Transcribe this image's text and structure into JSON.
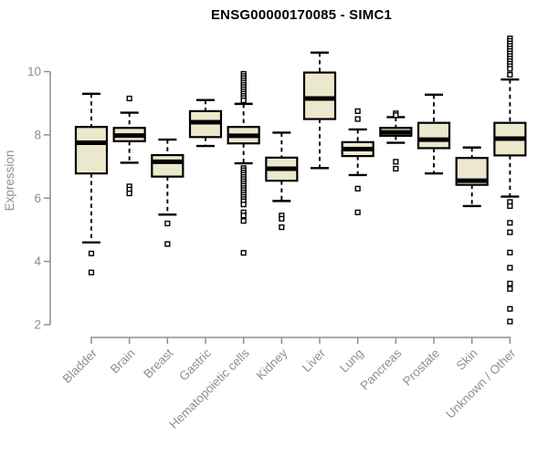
{
  "chart_data": {
    "type": "boxplot",
    "title": "ENSG00000170085 - SIMC1",
    "ylabel": "Expression",
    "xlabel": "",
    "yticks": [
      2,
      4,
      6,
      8,
      10
    ],
    "ylim": [
      1.9,
      11.1
    ],
    "grid": false,
    "legend": "none",
    "colors": {
      "box_fill": "#ece8cd",
      "box_stroke": "#000000",
      "axis": "#8f8f8f",
      "title": "#000000",
      "background": "#ffffff"
    },
    "categories": [
      "Bladder",
      "Brain",
      "Breast",
      "Gastric",
      "Hematopoietic cells",
      "Kidney",
      "Liver",
      "Lung",
      "Pancreas",
      "Prostate",
      "Skin",
      "Unknown / Other"
    ],
    "series": [
      {
        "name": "Bladder",
        "whisker_low": 4.6,
        "q1": 6.78,
        "median": 7.75,
        "q3": 8.25,
        "whisker_high": 9.3,
        "outliers": [
          4.25,
          3.65
        ]
      },
      {
        "name": "Brain",
        "whisker_low": 7.12,
        "q1": 7.8,
        "median": 7.98,
        "q3": 8.22,
        "whisker_high": 8.7,
        "outliers": [
          9.15,
          6.37,
          6.27,
          6.15
        ]
      },
      {
        "name": "Breast",
        "whisker_low": 5.48,
        "q1": 6.68,
        "median": 7.15,
        "q3": 7.36,
        "whisker_high": 7.85,
        "outliers": [
          5.2,
          4.55
        ]
      },
      {
        "name": "Gastric",
        "whisker_low": 7.65,
        "q1": 7.93,
        "median": 8.4,
        "q3": 8.75,
        "whisker_high": 9.1,
        "outliers": []
      },
      {
        "name": "Hematopoietic cells",
        "whisker_low": 7.1,
        "q1": 7.73,
        "median": 7.97,
        "q3": 8.25,
        "whisker_high": 8.98,
        "outliers": [
          9.93,
          9.86,
          9.79,
          9.72,
          9.65,
          9.58,
          9.51,
          9.44,
          9.37,
          9.3,
          9.23,
          9.16,
          9.09,
          6.95,
          6.88,
          6.81,
          6.74,
          6.67,
          6.6,
          6.53,
          6.46,
          6.39,
          6.32,
          6.25,
          6.18,
          6.11,
          6.04,
          5.97,
          5.9,
          5.8,
          5.55,
          5.45,
          5.28,
          4.27
        ]
      },
      {
        "name": "Kidney",
        "whisker_low": 5.91,
        "q1": 6.55,
        "median": 6.93,
        "q3": 7.28,
        "whisker_high": 8.07,
        "outliers": [
          5.45,
          5.35,
          5.08
        ]
      },
      {
        "name": "Liver",
        "whisker_low": 6.95,
        "q1": 8.5,
        "median": 9.15,
        "q3": 9.97,
        "whisker_high": 10.6,
        "outliers": []
      },
      {
        "name": "Lung",
        "whisker_low": 6.73,
        "q1": 7.33,
        "median": 7.55,
        "q3": 7.77,
        "whisker_high": 8.17,
        "outliers": [
          8.75,
          8.5,
          6.3,
          5.55
        ]
      },
      {
        "name": "Pancreas",
        "whisker_low": 7.75,
        "q1": 7.97,
        "median": 8.08,
        "q3": 8.22,
        "whisker_high": 8.56,
        "outliers": [
          8.68,
          8.62,
          7.15,
          6.93
        ]
      },
      {
        "name": "Prostate",
        "whisker_low": 6.78,
        "q1": 7.58,
        "median": 7.85,
        "q3": 8.38,
        "whisker_high": 9.27,
        "outliers": []
      },
      {
        "name": "Skin",
        "whisker_low": 5.75,
        "q1": 6.42,
        "median": 6.55,
        "q3": 7.27,
        "whisker_high": 7.6,
        "outliers": []
      },
      {
        "name": "Unknown / Other",
        "whisker_low": 6.05,
        "q1": 7.35,
        "median": 7.88,
        "q3": 8.38,
        "whisker_high": 9.75,
        "outliers": [
          11.05,
          10.97,
          10.89,
          10.81,
          10.73,
          10.65,
          10.57,
          10.49,
          10.41,
          10.33,
          10.25,
          10.17,
          10.09,
          9.9,
          5.88,
          5.75,
          5.22,
          4.92,
          4.28,
          3.8,
          3.3,
          3.13,
          2.5,
          2.1
        ]
      }
    ]
  }
}
